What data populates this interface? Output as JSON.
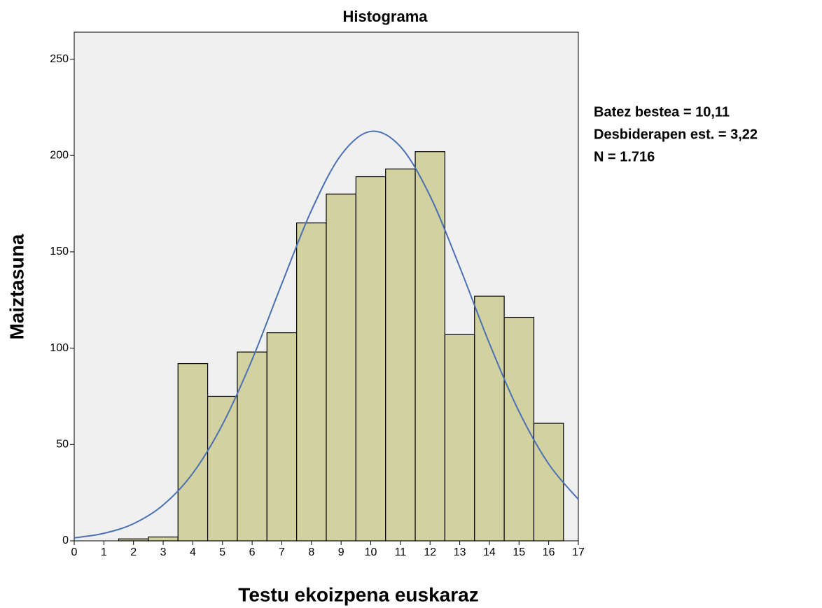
{
  "chart_data": {
    "type": "histogram",
    "title": "Histograma",
    "x_label": "Testu ekoizpena euskaraz",
    "y_label": "Maiztasuna",
    "annotations": [
      "Batez bestea = 10,11",
      "Desbiderapen est. = 3,22",
      "N = 1.716"
    ],
    "bins": [
      1.5,
      2.5,
      3.5,
      4.5,
      5.5,
      6.5,
      7.5,
      8.5,
      9.5,
      10.5,
      11.5,
      12.5,
      13.5,
      14.5,
      15.5,
      16.5
    ],
    "values": [
      1,
      2,
      92,
      75,
      98,
      108,
      165,
      180,
      189,
      193,
      202,
      107,
      127,
      116,
      61
    ],
    "color": "#d2d2a0",
    "curve": {
      "color": "#4a6fb5",
      "x": [
        0,
        1,
        2,
        3,
        4,
        5,
        6,
        7,
        8,
        9,
        10,
        11,
        12,
        13,
        14,
        15,
        16,
        17
      ],
      "values": [
        1.5,
        3.9,
        8.9,
        18.6,
        35.1,
        60.4,
        94.1,
        133.4,
        171.5,
        200.3,
        212.5,
        204.6,
        179.0,
        142.1,
        102.5,
        67.1,
        39.9,
        21.5
      ]
    },
    "xlim": [
      0,
      17
    ],
    "xticks": [
      0,
      1,
      2,
      3,
      4,
      5,
      6,
      7,
      8,
      9,
      10,
      11,
      12,
      13,
      14,
      15,
      16,
      17
    ],
    "ylim": [
      0,
      264
    ],
    "yticks": [
      0,
      50,
      100,
      150,
      200,
      250
    ],
    "background": "#f0f0f0"
  }
}
